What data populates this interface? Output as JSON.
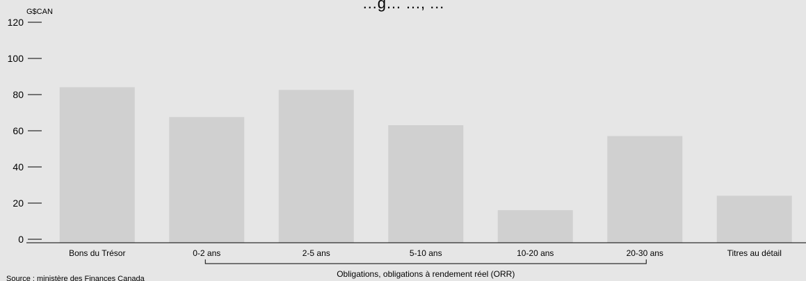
{
  "chart_data": {
    "type": "bar",
    "title": "…g… …, …",
    "ylabel": "G$CAN",
    "xlabel": "",
    "ylim": [
      0,
      120
    ],
    "yticks": [
      0,
      20,
      40,
      60,
      80,
      100,
      120
    ],
    "categories": [
      "Bons du Trésor",
      "0-2 ans",
      "2-5 ans",
      "5-10 ans",
      "10-20 ans",
      "20-30 ans",
      "Titres au détail"
    ],
    "values": [
      86,
      69.5,
      84.5,
      65,
      18,
      59,
      26
    ],
    "bar_color": "#d0d0d0",
    "grid": false,
    "bracket": {
      "label": "Obligations, obligations à rendement réel (ORR)",
      "from_category": "0-2 ans",
      "to_category": "20-30 ans"
    },
    "source": "Source : ministère des Finances Canada"
  },
  "colors": {
    "background": "#e6e6e6",
    "bar": "#d0d0d0",
    "axis": "#000000"
  }
}
